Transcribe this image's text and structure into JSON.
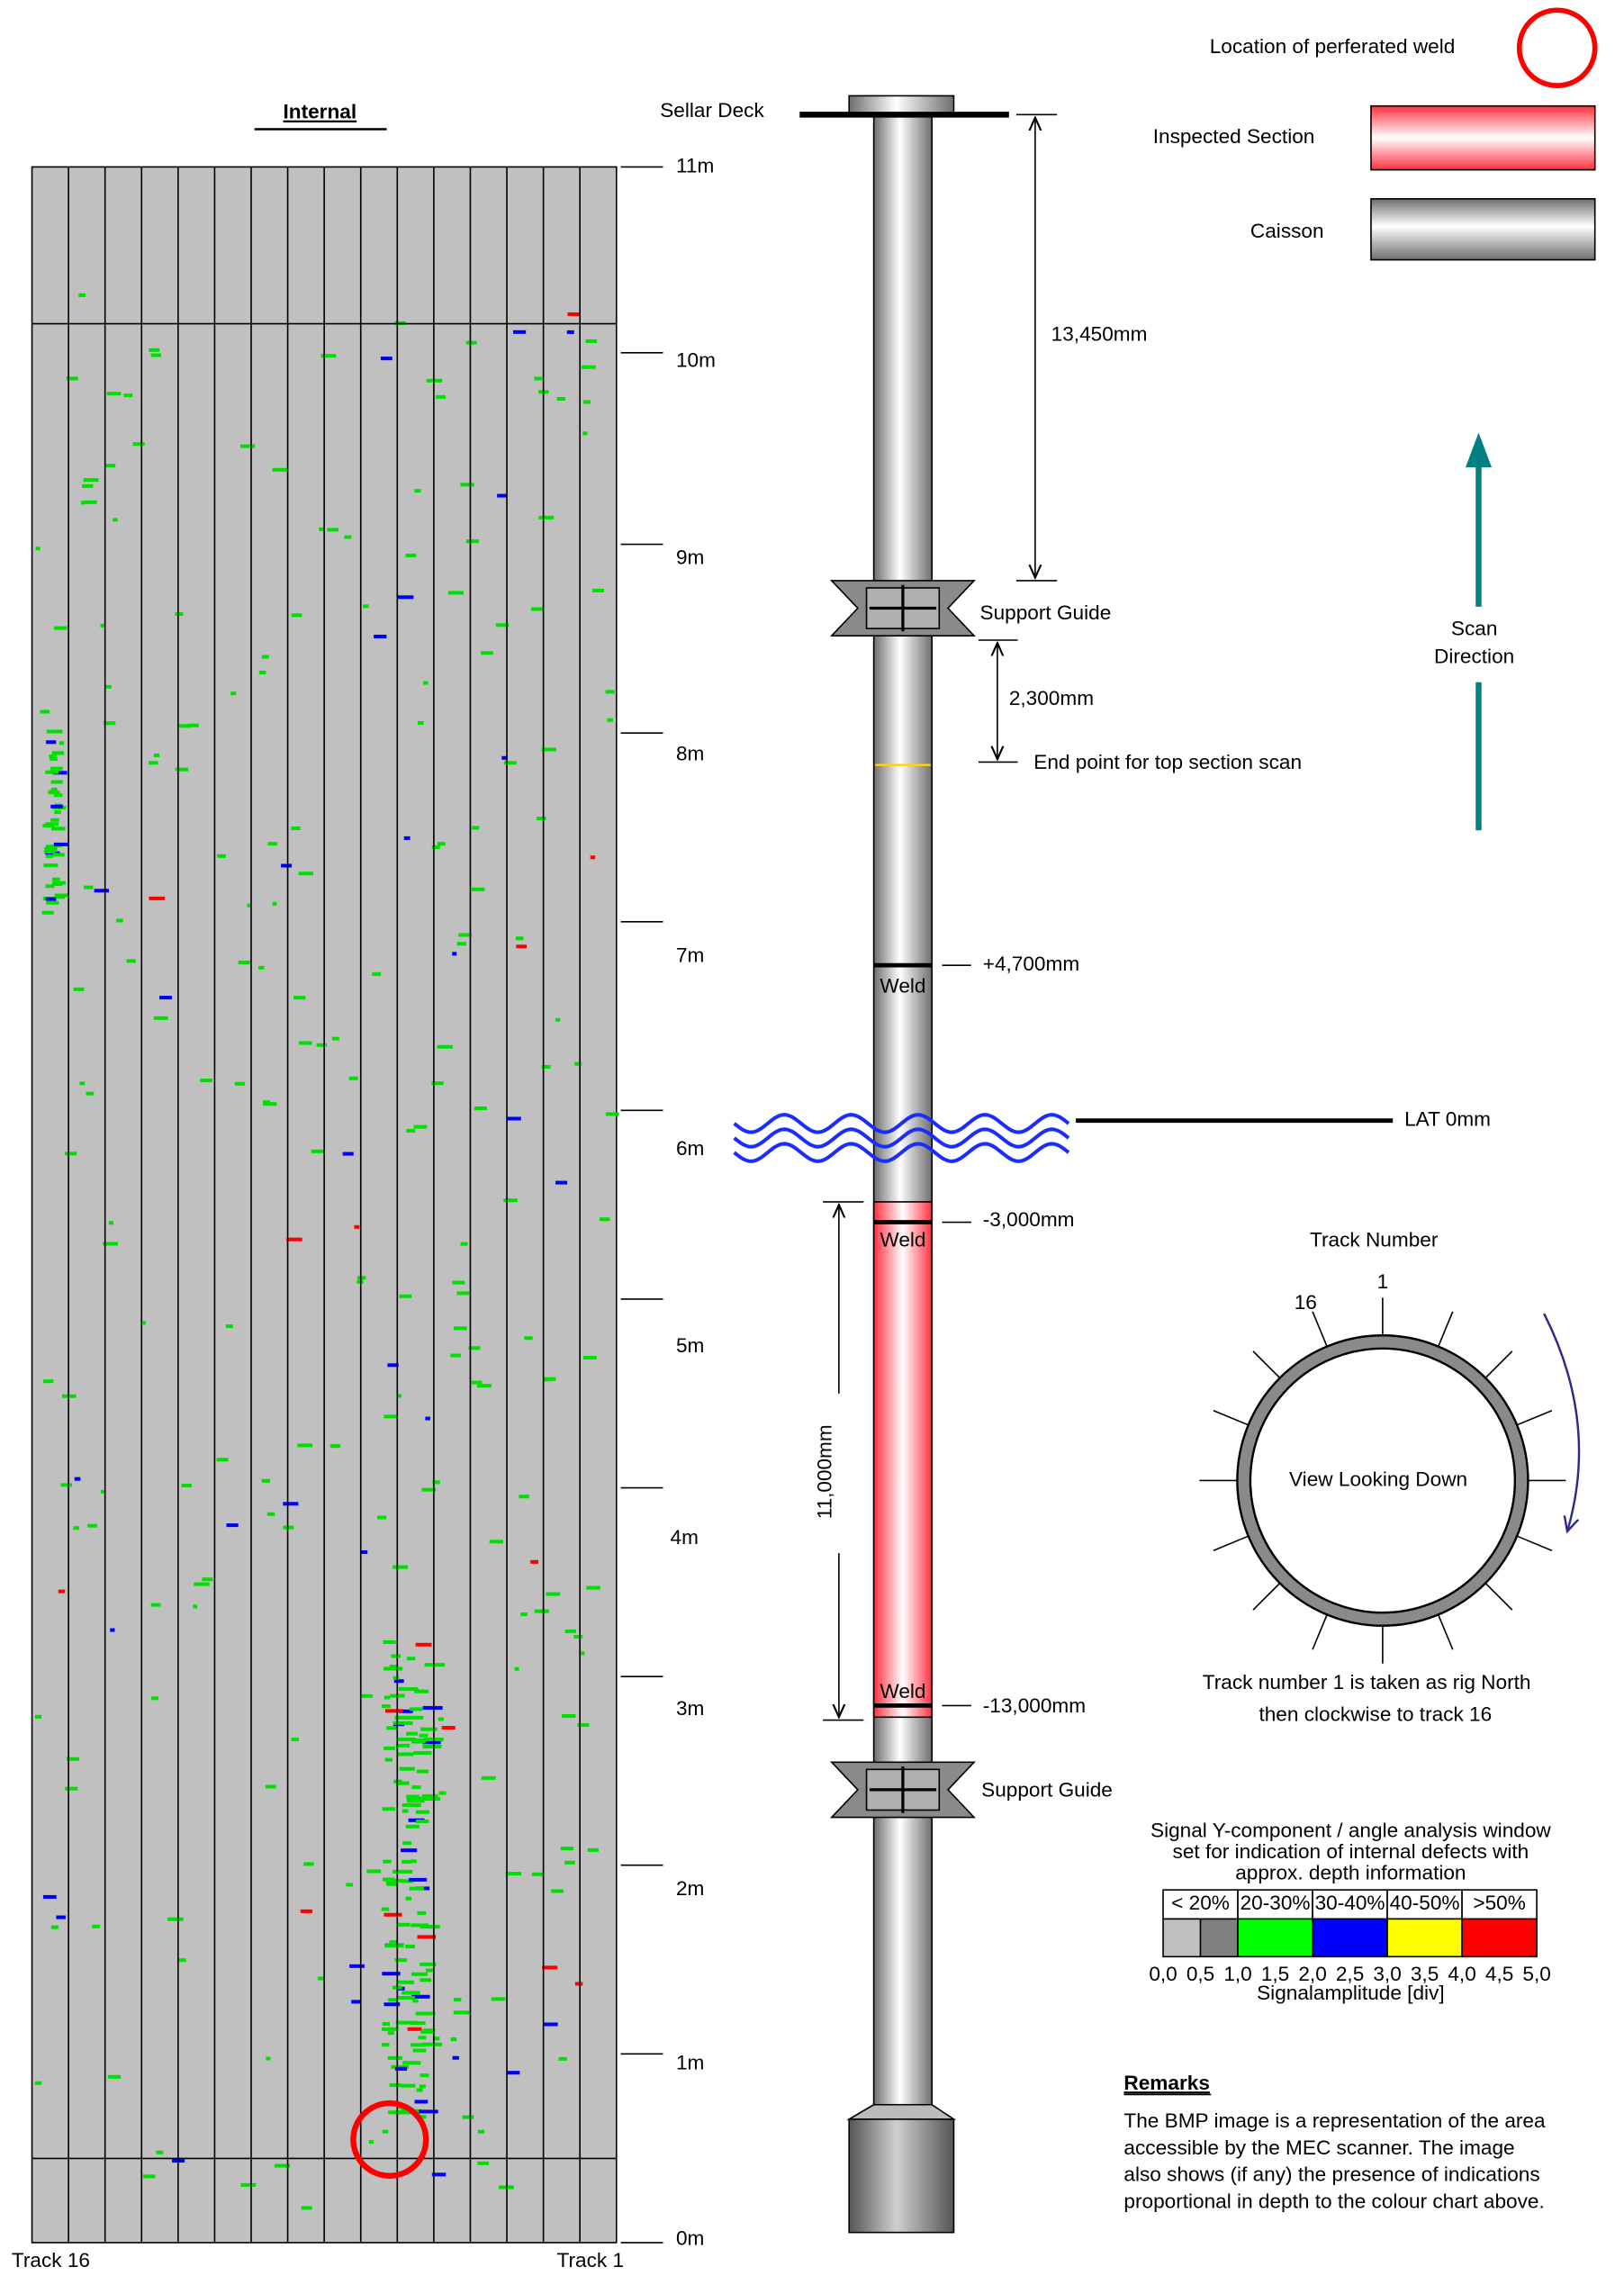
{
  "title": "Internal",
  "depth_scale": [
    "11m",
    "10m",
    "9m",
    "8m",
    "7m",
    "6m",
    "5m",
    "4m",
    "3m",
    "2m",
    "1m",
    "0m"
  ],
  "track_labels": {
    "left": "Track 16",
    "right": "Track 1"
  },
  "caisson": {
    "sellar_deck": "Sellar Deck",
    "support_guide_top": "Support Guide",
    "support_guide_bottom": "Support Guide",
    "dim_top": "13,450mm",
    "dim_guide": "2,300mm",
    "end_point": "End point for top section scan",
    "weld_1": "Weld",
    "weld_1_level": "+4,700mm",
    "lat": "LAT 0mm",
    "weld_2": "Weld",
    "weld_2_level": "-3,000mm",
    "weld_3": "Weld",
    "weld_3_level": "-13,000mm",
    "dim_inspected": "11,000mm"
  },
  "legend": {
    "perforated_weld": "Location of perferated weld",
    "inspected_section": "Inspected Section",
    "caisson": "Caisson"
  },
  "scan_direction": [
    "Scan",
    "Direction"
  ],
  "track_diagram": {
    "title": "Track Number",
    "track_1": "1",
    "track_16": "16",
    "center": "View Looking Down",
    "note": [
      "Track number 1 is taken as rig North",
      "then clockwise to track 16"
    ]
  },
  "color_scale": {
    "caption": [
      "Signal Y-component / angle analysis window",
      "set for indication of internal defects with",
      "approx. depth information"
    ],
    "bands": [
      "< 20%",
      "20-30%",
      "30-40%",
      "40-50%",
      ">50%"
    ],
    "ticks": [
      "0,0",
      "0,5",
      "1,0",
      "1,5",
      "2,0",
      "2,5",
      "3,0",
      "3,5",
      "4,0",
      "4,5",
      "5,0"
    ],
    "axis_label": "Signalamplitude [div]"
  },
  "remarks": {
    "title": "Remarks",
    "lines": [
      "The BMP image is a representation of the area",
      "accessible by the MEC scanner. The image",
      "also shows (if any) the presence of indications",
      "proportional in depth to the colour chart above."
    ]
  }
}
